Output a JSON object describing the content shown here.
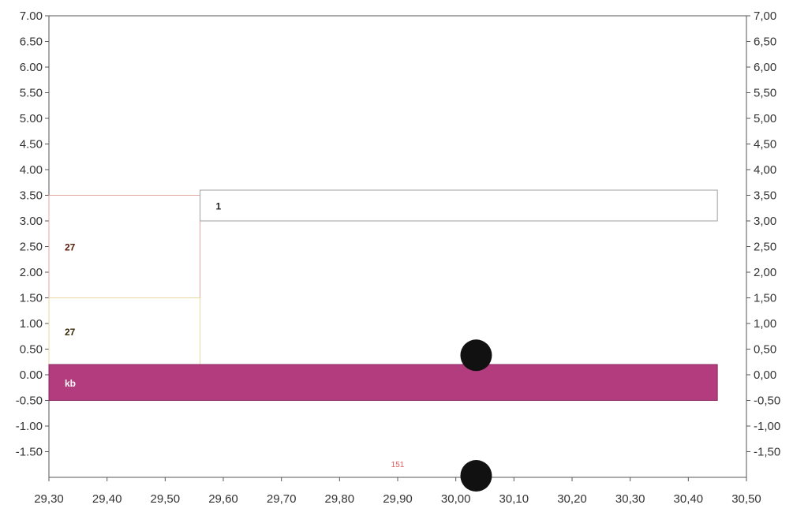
{
  "chart_data": {
    "type": "bar",
    "orientation": "horizontal-segments",
    "xlim": [
      29.3,
      30.5
    ],
    "ylim": [
      -2.0,
      7.0
    ],
    "x_ticks": [
      "29,30",
      "29,40",
      "29,50",
      "29,60",
      "29,70",
      "29,80",
      "29,90",
      "30,00",
      "30,10",
      "30,20",
      "30,30",
      "30,40",
      "30,50"
    ],
    "x_tick_values": [
      29.3,
      29.4,
      29.5,
      29.6,
      29.7,
      29.8,
      29.9,
      30.0,
      30.1,
      30.2,
      30.3,
      30.4,
      30.5
    ],
    "y_ticks_left": [
      "7.00",
      "6.50",
      "6.00",
      "5.50",
      "5.00",
      "4.50",
      "4.00",
      "3.50",
      "3.00",
      "2.50",
      "2.00",
      "1.50",
      "1.00",
      "0.50",
      "0.00",
      "-0.50",
      "-1.00",
      "-1.50"
    ],
    "y_ticks_right": [
      "7,00",
      "6,50",
      "6,00",
      "5,50",
      "5,00",
      "4,50",
      "4,00",
      "3,50",
      "3,00",
      "2,50",
      "2,00",
      "1,50",
      "1,00",
      "0,50",
      "0,00",
      "-0,50",
      "-1,00",
      "-1,50"
    ],
    "y_tick_values": [
      7.0,
      6.5,
      6.0,
      5.5,
      5.0,
      4.5,
      4.0,
      3.5,
      3.0,
      2.5,
      2.0,
      1.5,
      1.0,
      0.5,
      0.0,
      -0.5,
      -1.0,
      -1.5
    ],
    "segments": [
      {
        "x0": 29.3,
        "x1": 29.56,
        "y0": 1.5,
        "y1": 3.5,
        "label": "27",
        "fill": "#ffffff",
        "stroke": "#e0a8a0",
        "label_color": "#5a1a0a"
      },
      {
        "x0": 29.3,
        "x1": 29.56,
        "y0": 0.2,
        "y1": 1.5,
        "label": "27",
        "fill": "#ffffff",
        "stroke": "#e8d8a0",
        "label_color": "#3a2a0a"
      },
      {
        "x0": 29.56,
        "x1": 30.45,
        "y0": 3.0,
        "y1": 3.6,
        "label": "1",
        "fill": "#ffffff",
        "stroke": "#a0a0a0",
        "label_color": "#222222"
      },
      {
        "x0": 29.3,
        "x1": 30.45,
        "y0": -0.5,
        "y1": 0.2,
        "label": "kb",
        "fill": "#b23c7e",
        "stroke": "#8a2a60",
        "label_color": "#ffffff"
      }
    ],
    "points": [
      {
        "x": 30.035,
        "y": 0.38
      },
      {
        "x": 30.035,
        "y": -1.97
      }
    ],
    "annotations": [
      {
        "text": "151",
        "x": 29.9,
        "y": -1.8,
        "color": "#e06060"
      }
    ],
    "colors": {
      "axis": "#555555",
      "bar": "#b23c7e",
      "point": "#111111"
    }
  }
}
